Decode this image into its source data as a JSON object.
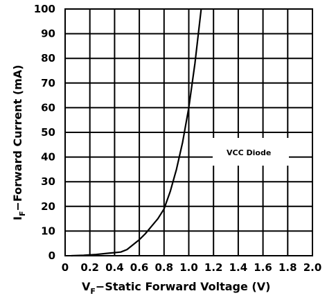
{
  "chart_data": {
    "type": "line",
    "xlabel_main": "V",
    "xlabel_sub": "F",
    "xlabel_rest": "−Static Forward Voltage (V)",
    "ylabel_main": "I",
    "ylabel_sub": "F",
    "ylabel_rest": "−Forward Current (mA)",
    "xlim": [
      0,
      2.0
    ],
    "ylim": [
      0,
      100
    ],
    "x_ticks": [
      "0",
      "0.2",
      "0.4",
      "0.6",
      "0.8",
      "1.0",
      "1.2",
      "1.4",
      "1.6",
      "1.8",
      "2.0"
    ],
    "y_ticks": [
      "0",
      "10",
      "20",
      "30",
      "40",
      "50",
      "60",
      "70",
      "80",
      "90",
      "100"
    ],
    "grid": true,
    "annotation": "VCC Diode",
    "series": [
      {
        "x": [
          0.05,
          0.15,
          0.25,
          0.35,
          0.45,
          0.5,
          0.55,
          0.6,
          0.65,
          0.7,
          0.75,
          0.8,
          0.85,
          0.9,
          0.95,
          1.0,
          1.05,
          1.1
        ],
        "y": [
          0,
          0.2,
          0.5,
          1,
          1.5,
          2.5,
          4.5,
          6.5,
          9,
          12,
          15,
          19,
          26,
          35,
          46,
          60,
          78,
          100
        ]
      }
    ],
    "colors": {
      "line": "#000000",
      "grid": "#000000",
      "background": "#ffffff"
    }
  }
}
